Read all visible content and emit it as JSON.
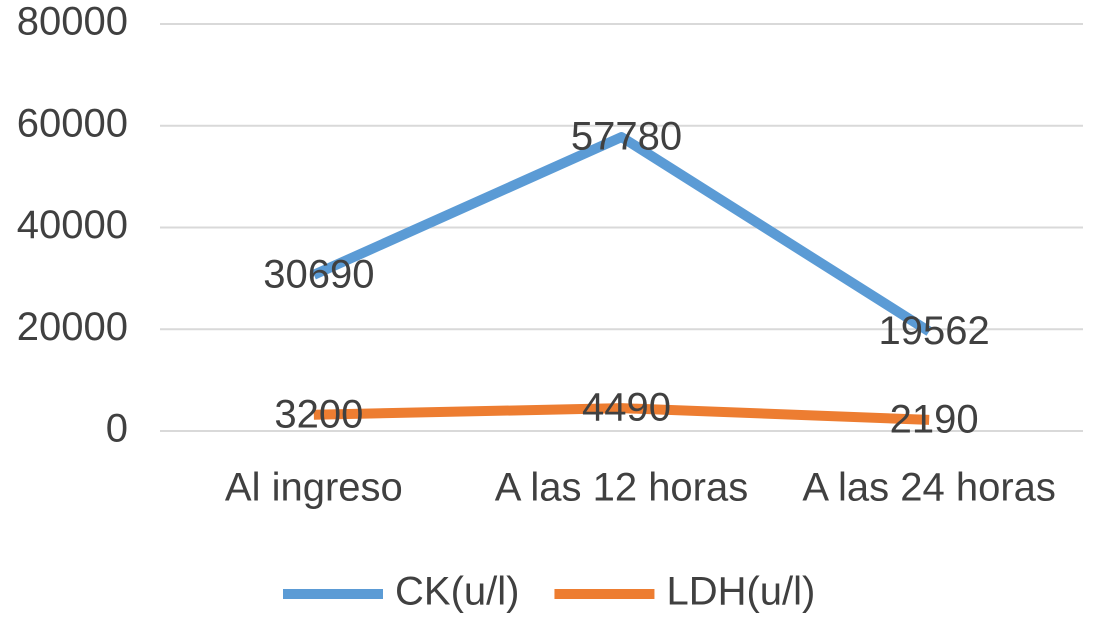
{
  "chart_data": {
    "type": "line",
    "categories": [
      "Al ingreso",
      "A las 12 horas",
      "A las 24 horas"
    ],
    "series": [
      {
        "name": "CK(u/l)",
        "color": "#5b9bd5",
        "values": [
          30690,
          57780,
          19562
        ]
      },
      {
        "name": "LDH(u/l)",
        "color": "#ed7d31",
        "values": [
          3200,
          4490,
          2190
        ]
      }
    ],
    "ylim": [
      0,
      80000
    ],
    "yticks": [
      0,
      20000,
      40000,
      60000,
      80000
    ],
    "grid": true,
    "legend": "bottom"
  }
}
